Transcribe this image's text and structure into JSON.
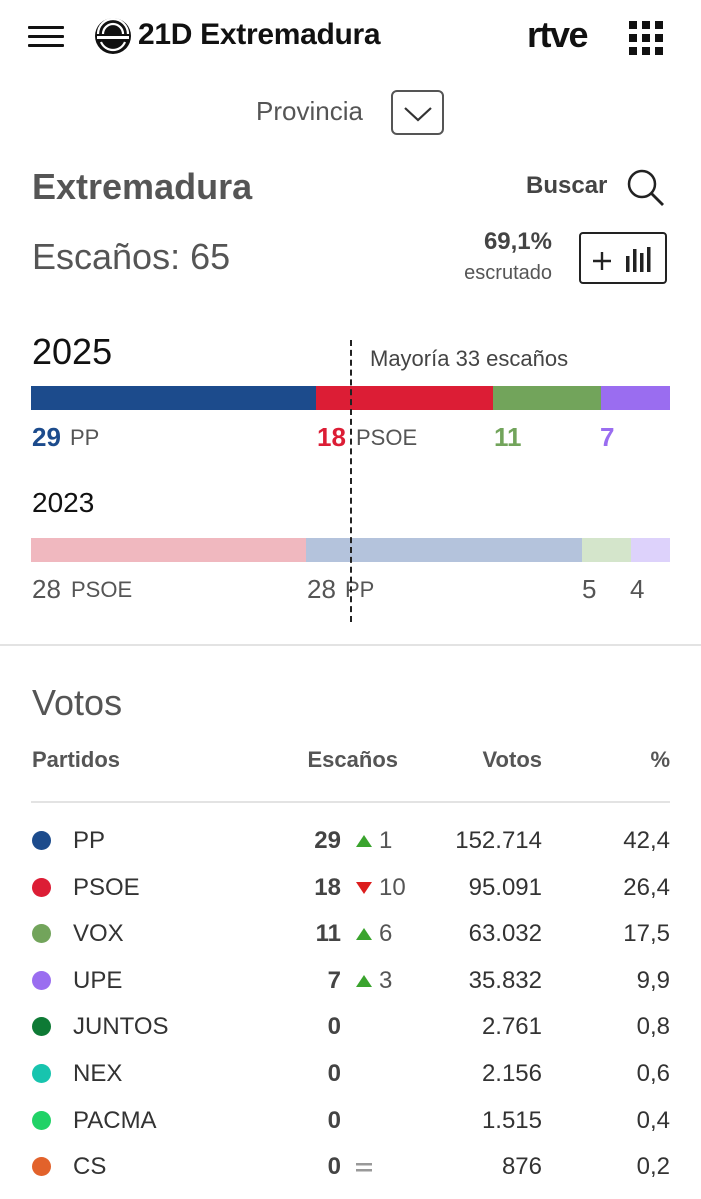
{
  "header": {
    "brand": "21D Extremadura",
    "rtve": "rtve"
  },
  "province": {
    "label": "Provincia"
  },
  "region": {
    "name": "Extremadura",
    "search_label": "Buscar",
    "seats_text": "Escaños: 65",
    "scrutiny_pct": "69,1%",
    "scrutiny_label": "escrutado"
  },
  "hemicycle": {
    "majority_text": "Mayoría 33 escaños",
    "y2025": {
      "year": "2025",
      "segments": [
        {
          "party": "PP",
          "seats": 29,
          "color": "#1c4b8c"
        },
        {
          "party": "PSOE",
          "seats": 18,
          "color": "#dc1d35"
        },
        {
          "party": "VOX",
          "seats": 11,
          "color": "#72a45b"
        },
        {
          "party": "UPE",
          "seats": 7,
          "color": "#9a6df0"
        }
      ],
      "labels": {
        "pp_num": "29",
        "pp": "PP",
        "psoe_num": "18",
        "psoe": "PSOE",
        "vox_num": "11",
        "upe_num": "7"
      }
    },
    "y2023": {
      "year": "2023",
      "segments": [
        {
          "party": "PSOE",
          "seats": 28,
          "color": "#f0b8bf"
        },
        {
          "party": "PP",
          "seats": 28,
          "color": "#b4c3dc"
        },
        {
          "party": "VOX",
          "seats": 5,
          "color": "#d4e5cb"
        },
        {
          "party": "UPE",
          "seats": 4,
          "color": "#ddd2fb"
        }
      ],
      "labels": {
        "psoe_num": "28",
        "psoe": "PSOE",
        "pp_num": "28",
        "pp": "PP",
        "vox_num": "5",
        "upe_num": "4"
      }
    }
  },
  "votes": {
    "title": "Votos",
    "headers": {
      "party": "Partidos",
      "seats": "Escaños",
      "votes": "Votos",
      "pct": "%"
    },
    "rows": [
      {
        "party": "PP",
        "color": "#1c4b8c",
        "seats": "29",
        "trend": "up",
        "delta": "1",
        "votes": "152.714",
        "pct": "42,4"
      },
      {
        "party": "PSOE",
        "color": "#dc1d35",
        "seats": "18",
        "trend": "down",
        "delta": "10",
        "votes": "95.091",
        "pct": "26,4"
      },
      {
        "party": "VOX",
        "color": "#72a45b",
        "seats": "11",
        "trend": "up",
        "delta": "6",
        "votes": "63.032",
        "pct": "17,5"
      },
      {
        "party": "UPE",
        "color": "#9a6df0",
        "seats": "7",
        "trend": "up",
        "delta": "3",
        "votes": "35.832",
        "pct": "9,9"
      },
      {
        "party": "JUNTOS",
        "color": "#0e7a35",
        "seats": "0",
        "trend": "",
        "delta": "",
        "votes": "2.761",
        "pct": "0,8"
      },
      {
        "party": "NEX",
        "color": "#17c4ae",
        "seats": "0",
        "trend": "",
        "delta": "",
        "votes": "2.156",
        "pct": "0,6"
      },
      {
        "party": "PACMA",
        "color": "#20d266",
        "seats": "0",
        "trend": "",
        "delta": "",
        "votes": "1.515",
        "pct": "0,4"
      },
      {
        "party": "CS",
        "color": "#e2622b",
        "seats": "0",
        "trend": "equal",
        "delta": "",
        "votes": "876",
        "pct": "0,2"
      }
    ]
  }
}
